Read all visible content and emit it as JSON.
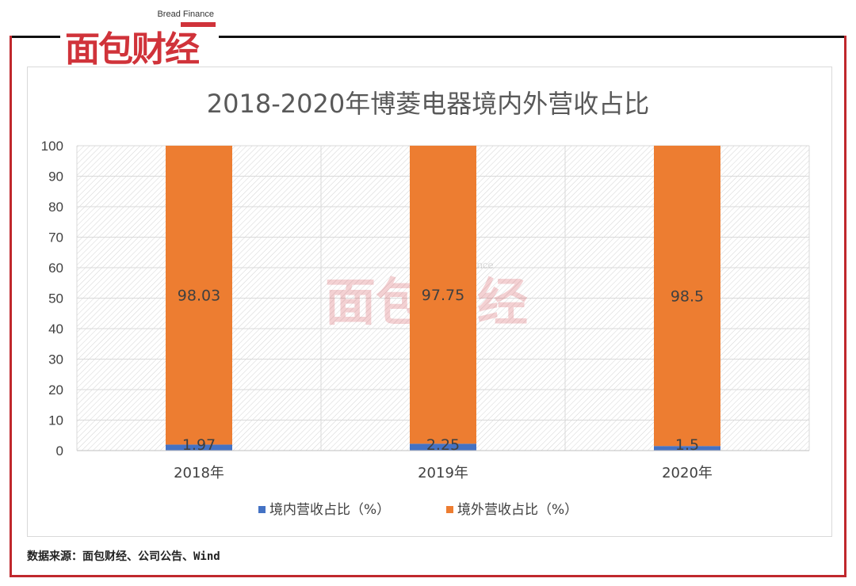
{
  "brand": {
    "name_cn": "面包财经",
    "name_en": "Bread Finance",
    "color": "#d0333a"
  },
  "chart_data": {
    "type": "bar",
    "stacked": true,
    "title": "2018-2020年博菱电器境内外营收占比",
    "categories": [
      "2018年",
      "2019年",
      "2020年"
    ],
    "series": [
      {
        "name": "境内营收占比（%）",
        "values": [
          1.97,
          2.25,
          1.5
        ],
        "color": "#4472c4"
      },
      {
        "name": "境外营收占比（%）",
        "values": [
          98.03,
          97.75,
          98.5
        ],
        "color": "#ed7d31"
      }
    ],
    "ylim": [
      0,
      100
    ],
    "yticks": [
      0,
      10,
      20,
      30,
      40,
      50,
      60,
      70,
      80,
      90,
      100
    ],
    "grid": true,
    "legend_position": "bottom",
    "xlabel": "",
    "ylabel": ""
  },
  "footer": {
    "source": "数据来源：面包财经、公司公告、Wind"
  }
}
